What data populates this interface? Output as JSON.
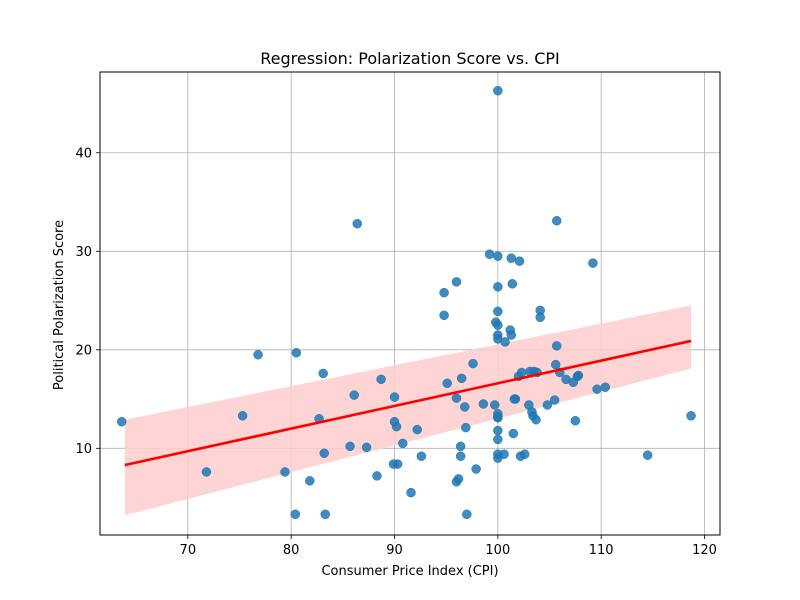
{
  "chart_data": {
    "type": "scatter",
    "title": "Regression: Polarization Score vs. CPI",
    "xlabel": "Consumer Price Index (CPI)",
    "ylabel": "Political Polarization Score",
    "xlim": [
      61.5,
      121.5
    ],
    "ylim": [
      1.2,
      48.2
    ],
    "xticks": [
      70,
      80,
      90,
      100,
      110,
      120
    ],
    "yticks": [
      10,
      20,
      30,
      40
    ],
    "grid": true,
    "colors": {
      "points": "#1f77b4",
      "line": "#ff0000",
      "band": "#ffcccc"
    },
    "regression": {
      "x": [
        63.9,
        118.7
      ],
      "y": [
        8.3,
        20.9
      ],
      "ci_lower": [
        3.2,
        18.1
      ],
      "ci_upper": [
        12.9,
        24.5
      ]
    },
    "points": [
      [
        63.6,
        12.7
      ],
      [
        71.8,
        7.6
      ],
      [
        75.3,
        13.3
      ],
      [
        76.8,
        19.5
      ],
      [
        79.4,
        7.6
      ],
      [
        80.4,
        3.3
      ],
      [
        80.5,
        19.7
      ],
      [
        81.8,
        6.7
      ],
      [
        82.7,
        13.0
      ],
      [
        83.1,
        17.6
      ],
      [
        83.2,
        9.5
      ],
      [
        83.3,
        3.3
      ],
      [
        85.7,
        10.2
      ],
      [
        86.1,
        15.4
      ],
      [
        86.4,
        32.8
      ],
      [
        87.3,
        10.1
      ],
      [
        88.3,
        7.2
      ],
      [
        88.7,
        17.0
      ],
      [
        89.9,
        8.4
      ],
      [
        90.0,
        15.2
      ],
      [
        90.0,
        12.7
      ],
      [
        90.2,
        12.2
      ],
      [
        90.3,
        8.4
      ],
      [
        90.8,
        10.5
      ],
      [
        91.6,
        5.5
      ],
      [
        92.2,
        11.9
      ],
      [
        92.6,
        9.2
      ],
      [
        94.8,
        25.8
      ],
      [
        94.8,
        23.5
      ],
      [
        95.1,
        16.6
      ],
      [
        96.0,
        26.9
      ],
      [
        96.0,
        15.1
      ],
      [
        96.0,
        6.6
      ],
      [
        96.2,
        6.9
      ],
      [
        96.4,
        10.2
      ],
      [
        96.4,
        9.2
      ],
      [
        96.5,
        17.1
      ],
      [
        96.8,
        14.2
      ],
      [
        96.9,
        12.1
      ],
      [
        97.0,
        3.3
      ],
      [
        97.6,
        18.6
      ],
      [
        97.9,
        7.9
      ],
      [
        98.6,
        14.5
      ],
      [
        99.2,
        29.7
      ],
      [
        99.7,
        14.4
      ],
      [
        99.8,
        22.8
      ],
      [
        100.0,
        46.3
      ],
      [
        100.0,
        29.5
      ],
      [
        100.0,
        26.4
      ],
      [
        100.0,
        23.9
      ],
      [
        100.0,
        22.5
      ],
      [
        100.0,
        21.5
      ],
      [
        100.0,
        21.1
      ],
      [
        100.0,
        13.5
      ],
      [
        100.0,
        13.1
      ],
      [
        100.0,
        11.8
      ],
      [
        100.0,
        10.9
      ],
      [
        100.0,
        9.4
      ],
      [
        100.0,
        9.0
      ],
      [
        100.0,
        13.2
      ],
      [
        100.6,
        9.4
      ],
      [
        100.7,
        20.8
      ],
      [
        101.2,
        22.0
      ],
      [
        101.3,
        21.5
      ],
      [
        101.3,
        29.3
      ],
      [
        101.4,
        26.7
      ],
      [
        101.5,
        11.5
      ],
      [
        101.6,
        15.0
      ],
      [
        101.7,
        15.0
      ],
      [
        102.0,
        17.3
      ],
      [
        102.1,
        29.0
      ],
      [
        102.2,
        9.2
      ],
      [
        102.3,
        17.7
      ],
      [
        102.6,
        9.4
      ],
      [
        103.0,
        14.4
      ],
      [
        103.1,
        17.8
      ],
      [
        103.3,
        13.7
      ],
      [
        103.4,
        13.3
      ],
      [
        103.5,
        17.8
      ],
      [
        103.7,
        12.9
      ],
      [
        103.8,
        17.7
      ],
      [
        104.1,
        24.0
      ],
      [
        104.1,
        23.3
      ],
      [
        104.8,
        14.4
      ],
      [
        105.5,
        14.9
      ],
      [
        105.6,
        18.5
      ],
      [
        105.7,
        20.4
      ],
      [
        105.7,
        33.1
      ],
      [
        106.0,
        17.7
      ],
      [
        106.6,
        17.0
      ],
      [
        107.3,
        16.7
      ],
      [
        107.5,
        12.8
      ],
      [
        107.7,
        17.3
      ],
      [
        107.8,
        17.4
      ],
      [
        109.2,
        28.8
      ],
      [
        109.6,
        16.0
      ],
      [
        110.4,
        16.2
      ],
      [
        114.5,
        9.3
      ],
      [
        118.7,
        13.3
      ]
    ]
  }
}
